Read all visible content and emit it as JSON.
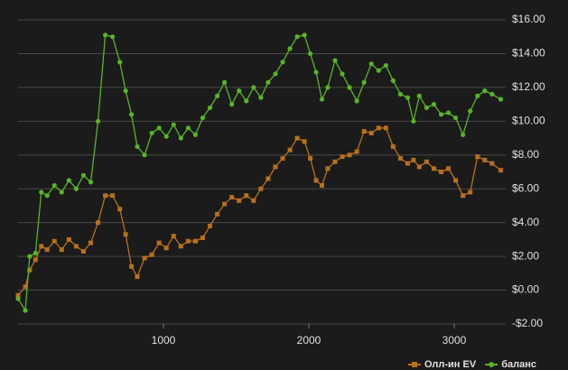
{
  "chart_data": {
    "type": "line",
    "grid": true,
    "legend": "bottom-right",
    "x": [
      0,
      50,
      80,
      120,
      160,
      200,
      250,
      300,
      350,
      400,
      450,
      500,
      550,
      600,
      650,
      700,
      740,
      780,
      820,
      870,
      920,
      970,
      1020,
      1070,
      1120,
      1170,
      1220,
      1270,
      1320,
      1370,
      1420,
      1470,
      1520,
      1570,
      1620,
      1670,
      1720,
      1770,
      1820,
      1870,
      1920,
      1970,
      2010,
      2050,
      2090,
      2130,
      2180,
      2230,
      2280,
      2330,
      2380,
      2430,
      2480,
      2530,
      2580,
      2630,
      2680,
      2720,
      2760,
      2810,
      2860,
      2910,
      2960,
      3010,
      3060,
      3110,
      3160,
      3210,
      3260,
      3320
    ],
    "series": [
      {
        "name": "Олл-ин EV",
        "color": "#b8701a",
        "marker": "square",
        "values": [
          -0.3,
          0.2,
          1.2,
          1.8,
          2.6,
          2.4,
          2.9,
          2.4,
          3.0,
          2.6,
          2.3,
          2.8,
          4.0,
          5.6,
          5.6,
          4.8,
          3.3,
          1.4,
          0.8,
          1.9,
          2.1,
          2.8,
          2.5,
          3.2,
          2.6,
          2.9,
          2.9,
          3.1,
          3.8,
          4.5,
          5.1,
          5.5,
          5.3,
          5.6,
          5.3,
          6.0,
          6.6,
          7.3,
          7.8,
          8.3,
          9.0,
          8.8,
          7.8,
          6.5,
          6.2,
          7.2,
          7.6,
          7.9,
          8.0,
          8.2,
          9.4,
          9.3,
          9.6,
          9.6,
          8.5,
          7.8,
          7.5,
          7.7,
          7.3,
          7.6,
          7.2,
          7.0,
          7.2,
          6.5,
          5.6,
          5.8,
          7.9,
          7.7,
          7.5,
          7.1
        ]
      },
      {
        "name": "баланс",
        "color": "#58b526",
        "marker": "circle",
        "values": [
          -0.5,
          -1.2,
          2.0,
          2.2,
          5.8,
          5.6,
          6.2,
          5.8,
          6.5,
          6.0,
          6.8,
          6.4,
          10.0,
          15.1,
          15.0,
          13.5,
          11.8,
          10.4,
          8.5,
          8.0,
          9.3,
          9.6,
          9.1,
          9.8,
          9.0,
          9.6,
          9.2,
          10.2,
          10.8,
          11.5,
          12.3,
          11.0,
          11.8,
          11.2,
          12.0,
          11.4,
          12.3,
          12.8,
          13.5,
          14.3,
          15.0,
          15.1,
          14.0,
          12.9,
          11.3,
          12.0,
          13.6,
          12.8,
          12.0,
          11.2,
          12.3,
          13.4,
          13.0,
          13.3,
          12.4,
          11.6,
          11.4,
          10.0,
          11.5,
          10.8,
          11.0,
          10.4,
          10.5,
          10.2,
          9.2,
          10.6,
          11.5,
          11.8,
          11.6,
          11.3
        ]
      }
    ],
    "xlim": [
      0,
      3354
    ],
    "xticks": [
      1000,
      2000,
      3000
    ],
    "ylim": [
      -2,
      16
    ],
    "yticks": [
      {
        "value": -2,
        "label": "-$2.00"
      },
      {
        "value": 0,
        "label": "$0.00"
      },
      {
        "value": 2,
        "label": "$2.00"
      },
      {
        "value": 4,
        "label": "$4.00"
      },
      {
        "value": 6,
        "label": "$6.00"
      },
      {
        "value": 8,
        "label": "$8.00"
      },
      {
        "value": 10,
        "label": "$10.00"
      },
      {
        "value": 12,
        "label": "$12.00"
      },
      {
        "value": 14,
        "label": "$14.00"
      },
      {
        "value": 16,
        "label": "$16.00"
      }
    ]
  }
}
